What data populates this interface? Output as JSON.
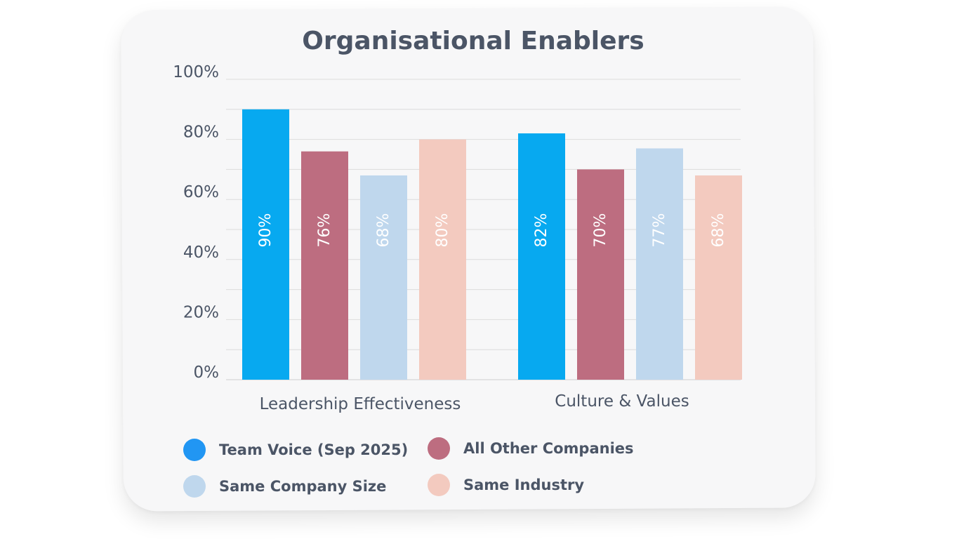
{
  "chart_data": {
    "type": "bar",
    "title": "Organisational Enablers",
    "categories": [
      "Leadership Effectiveness",
      "Culture & Values"
    ],
    "series": [
      {
        "name": "Team Voice (Sep 2025)",
        "color": "#07a9f0",
        "values": [
          90,
          82
        ],
        "labels": [
          "90%",
          "82%"
        ]
      },
      {
        "name": "All Other Companies",
        "color": "#bd6d80",
        "values": [
          76,
          70
        ],
        "labels": [
          "76%",
          "70%"
        ]
      },
      {
        "name": "Same Company Size",
        "color": "#bfd7ed",
        "values": [
          68,
          77
        ],
        "labels": [
          "68%",
          "77%"
        ]
      },
      {
        "name": "Same Industry",
        "color": "#f3cabf",
        "values": [
          80,
          68
        ],
        "labels": [
          "80%",
          "68%"
        ]
      }
    ],
    "ylim": [
      0,
      100
    ],
    "yticks": [
      0,
      20,
      40,
      60,
      80,
      100
    ],
    "ytick_labels": [
      "0%",
      "20%",
      "40%",
      "60%",
      "80%",
      "100%"
    ],
    "xlabel": "",
    "ylabel": "",
    "grid": true,
    "legend_position": "bottom-left"
  },
  "colors": {
    "legend_team_voice": "#2196f3",
    "text": "#4b5566",
    "grid": "#dcdcdc"
  }
}
